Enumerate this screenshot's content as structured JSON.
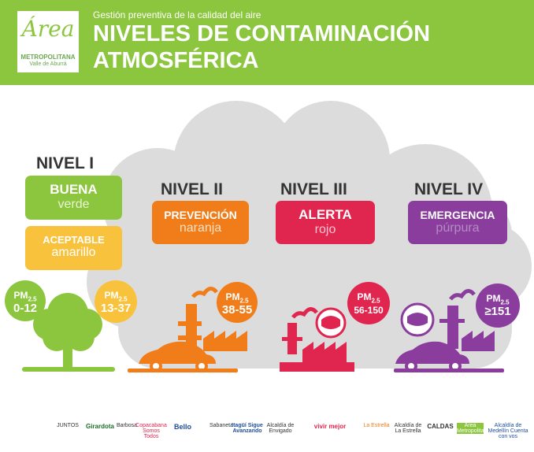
{
  "header": {
    "subtitle": "Gestión preventiva de la calidad del aire",
    "title_line1": "NIVELES DE CONTAMINACIÓN",
    "title_line2": "ATMOSFÉRICA",
    "logo_word": "Área",
    "logo_line1": "METROPOLITANA",
    "logo_line2": "Valle de Aburrá"
  },
  "levels": [
    {
      "heading": "NIVEL I",
      "cards": [
        {
          "name": "BUENA",
          "color_word": "verde",
          "bg": "#8cc63f",
          "word_color": "#e8f5d0"
        },
        {
          "name": "ACEPTABLE",
          "color_word": "amarillo",
          "bg": "#f9c23c",
          "word_color": "#ffffff"
        }
      ]
    },
    {
      "heading": "NIVEL II",
      "cards": [
        {
          "name": "PREVENCIÓN",
          "color_word": "naranja",
          "bg": "#f07d1a",
          "word_color": "#fde0c2"
        }
      ]
    },
    {
      "heading": "NIVEL III",
      "cards": [
        {
          "name": "ALERTA",
          "color_word": "rojo",
          "bg": "#e0264f",
          "word_color": "#f7c4cf"
        }
      ]
    },
    {
      "heading": "NIVEL IV",
      "cards": [
        {
          "name": "EMERGENCIA",
          "color_word": "púrpura",
          "bg": "#8b3d9e",
          "word_color": "#b48cc4"
        }
      ]
    }
  ],
  "pm_badges": [
    {
      "label": "PM",
      "sub": "2.5",
      "value": "0-12",
      "color": "#8cc63f"
    },
    {
      "label": "PM",
      "sub": "2.5",
      "value": "13-37",
      "color": "#f9c23c"
    },
    {
      "label": "PM",
      "sub": "2.5",
      "value": "38-55",
      "color": "#f07d1a"
    },
    {
      "label": "PM",
      "sub": "2.5",
      "value": "56-150",
      "color": "#e0264f"
    },
    {
      "label": "PM",
      "sub": "2.5",
      "value": "≥151",
      "color": "#8b3d9e"
    }
  ],
  "sponsors": [
    "JUNTOS",
    "Girardota",
    "Barbosa",
    "Copacabana Somos Todos",
    "Bello",
    "Sabaneta",
    "Itagüí Sigue Avanzando",
    "Alcaldía de Envigado",
    "vivir mejor",
    "La Estrella",
    "Alcaldía de La Estrella",
    "CALDAS",
    "Área Metropolitana",
    "Alcaldía de Medellín Cuenta con vos"
  ],
  "colors": {
    "header": "#8cc63f",
    "cloud": "#dcdcdc",
    "heading": "#333333"
  }
}
